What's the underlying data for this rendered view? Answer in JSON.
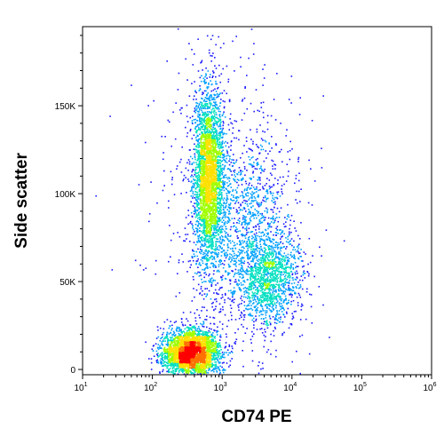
{
  "chart_data": {
    "type": "scatter",
    "xlabel": "CD74 PE",
    "ylabel": "Side scatter",
    "x_scale": "log",
    "xlim": [
      10,
      1000000
    ],
    "ylim": [
      -3000,
      195000
    ],
    "x_ticks": [
      {
        "value": 10,
        "base": "10",
        "exp": "1"
      },
      {
        "value": 100,
        "base": "10",
        "exp": "2"
      },
      {
        "value": 1000,
        "base": "10",
        "exp": "3"
      },
      {
        "value": 10000,
        "base": "10",
        "exp": "4"
      },
      {
        "value": 100000,
        "base": "10",
        "exp": "5"
      },
      {
        "value": 1000000,
        "base": "10",
        "exp": "6"
      }
    ],
    "y_ticks": [
      {
        "value": 0,
        "label": "0"
      },
      {
        "value": 50000,
        "label": "50K"
      },
      {
        "value": 100000,
        "label": "100K"
      },
      {
        "value": 150000,
        "label": "150K"
      }
    ],
    "grid": false,
    "legend": "none",
    "density_colormap": [
      "#1a1aff",
      "#00a0ff",
      "#00e0c0",
      "#a0ff00",
      "#ffe000",
      "#ff7000",
      "#ff0000"
    ],
    "populations": [
      {
        "x_center": 630,
        "y_center": 110000,
        "x_spread": 0.11,
        "y_spread": 24000,
        "share": 0.34
      },
      {
        "x_center": 350,
        "y_center": 10000,
        "x_spread": 0.2,
        "y_spread": 6500,
        "share": 0.34
      },
      {
        "x_center": 4500,
        "y_center": 52000,
        "x_spread": 0.22,
        "y_spread": 13000,
        "share": 0.14
      },
      {
        "x_center": 2500,
        "y_center": 80000,
        "x_spread": 0.3,
        "y_spread": 26000,
        "share": 0.1
      },
      {
        "x_center": 1200,
        "y_center": 90000,
        "x_spread": 0.55,
        "y_spread": 50000,
        "share": 0.08
      }
    ]
  }
}
